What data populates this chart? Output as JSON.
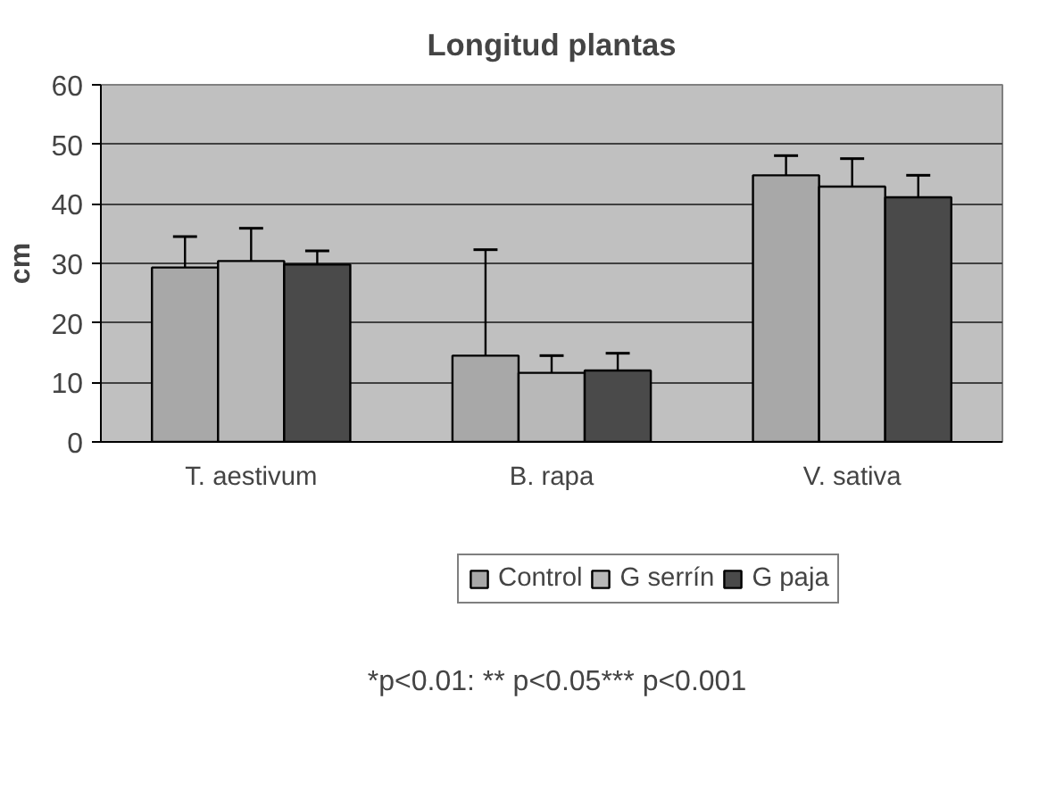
{
  "chart_data": {
    "type": "bar",
    "title": "Longitud plantas",
    "ylabel": "cm",
    "categories": [
      "T. aestivum",
      "B. rapa",
      "V. sativa"
    ],
    "series": [
      {
        "name": "Control",
        "color": "#a8a8a8",
        "values": [
          29.3,
          14.5,
          44.8
        ],
        "errors": [
          [
            29.3,
            34.5
          ],
          [
            14.5,
            32.3
          ],
          [
            44.8,
            48.1
          ]
        ]
      },
      {
        "name": "G serrín",
        "color": "#b8b8b8",
        "values": [
          30.4,
          11.6,
          42.9
        ],
        "errors": [
          [
            30.4,
            35.9
          ],
          [
            11.6,
            14.5
          ],
          [
            42.9,
            47.6
          ]
        ]
      },
      {
        "name": "G paja",
        "color": "#4a4a4a",
        "values": [
          29.8,
          12.0,
          41.1
        ],
        "errors": [
          [
            29.8,
            32.1
          ],
          [
            12.0,
            14.9
          ],
          [
            41.1,
            44.8
          ]
        ]
      }
    ],
    "ylim": [
      0,
      60
    ],
    "yticks": [
      0,
      10,
      20,
      30,
      40,
      50,
      60
    ],
    "grid": "y",
    "legend": "bottom",
    "annotations": [
      "*p<0.01: ** p<0.05*** p<0.001"
    ]
  }
}
